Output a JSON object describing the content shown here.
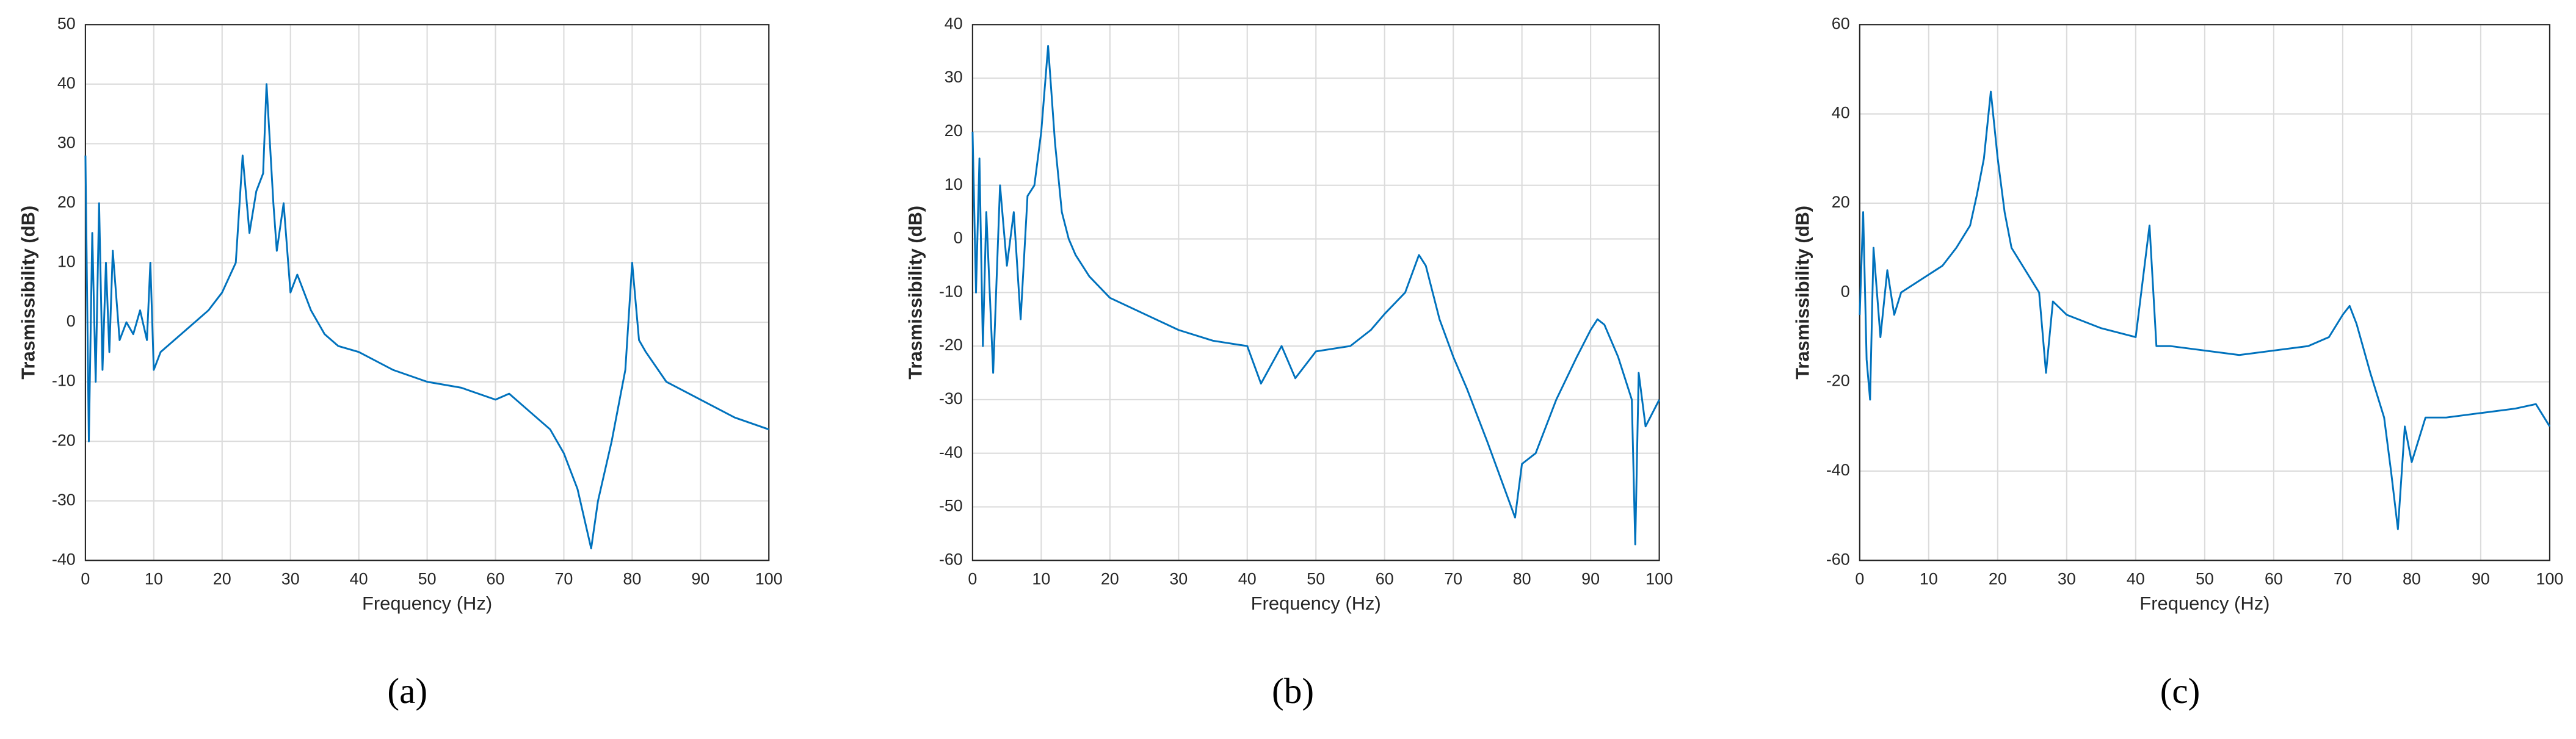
{
  "chart_data": [
    {
      "type": "line",
      "caption": "(a)",
      "xlabel": "Frequency (Hz)",
      "ylabel": "Trasmissibility (dB)",
      "xlim": [
        0,
        100
      ],
      "xticks": [
        0,
        10,
        20,
        30,
        40,
        50,
        60,
        70,
        80,
        90,
        100
      ],
      "ylim": [
        -40,
        50
      ],
      "yticks": [
        -40,
        -30,
        -20,
        -10,
        0,
        10,
        20,
        30,
        40,
        50
      ],
      "grid": true,
      "color": "#0072bd",
      "x": [
        0,
        0.5,
        1,
        1.5,
        2,
        2.5,
        3,
        3.5,
        4,
        5,
        6,
        7,
        8,
        9,
        9.5,
        10,
        11,
        13,
        15,
        18,
        20,
        22,
        23,
        24,
        25,
        26,
        26.5,
        27,
        27.5,
        28,
        29,
        30,
        31,
        33,
        35,
        37,
        40,
        45,
        50,
        55,
        60,
        62,
        65,
        68,
        70,
        72,
        74,
        75,
        77,
        79,
        80,
        81,
        82,
        85,
        90,
        95,
        100
      ],
      "values": [
        28,
        -20,
        15,
        -10,
        20,
        -8,
        10,
        -5,
        12,
        -3,
        0,
        -2,
        2,
        -3,
        10,
        -8,
        -5,
        -3,
        -1,
        2,
        5,
        10,
        28,
        15,
        22,
        25,
        40,
        30,
        20,
        12,
        20,
        5,
        8,
        2,
        -2,
        -4,
        -5,
        -8,
        -10,
        -11,
        -13,
        -12,
        -15,
        -18,
        -22,
        -28,
        -38,
        -30,
        -20,
        -8,
        10,
        -3,
        -5,
        -10,
        -13,
        -16,
        -18
      ]
    },
    {
      "type": "line",
      "caption": "(b)",
      "xlabel": "Frequency (Hz)",
      "ylabel": "Trasmissibility (dB)",
      "xlim": [
        0,
        100
      ],
      "xticks": [
        0,
        10,
        20,
        30,
        40,
        50,
        60,
        70,
        80,
        90,
        100
      ],
      "ylim": [
        -60,
        40
      ],
      "yticks": [
        -60,
        -50,
        -40,
        -30,
        -20,
        -10,
        0,
        10,
        20,
        30,
        40
      ],
      "grid": true,
      "color": "#0072bd",
      "x": [
        0,
        0.5,
        1,
        1.5,
        2,
        3,
        4,
        5,
        6,
        7,
        8,
        9,
        10,
        11,
        12,
        13,
        14,
        15,
        17,
        20,
        25,
        30,
        35,
        40,
        42,
        45,
        47,
        50,
        55,
        58,
        60,
        63,
        65,
        66,
        68,
        70,
        72,
        75,
        77,
        79,
        80,
        82,
        85,
        88,
        90,
        91,
        92,
        94,
        96,
        96.5,
        97,
        98,
        100
      ],
      "values": [
        20,
        -10,
        15,
        -20,
        5,
        -25,
        10,
        -5,
        5,
        -15,
        8,
        10,
        20,
        36,
        18,
        5,
        0,
        -3,
        -7,
        -11,
        -14,
        -17,
        -19,
        -20,
        -27,
        -20,
        -26,
        -21,
        -20,
        -17,
        -14,
        -10,
        -3,
        -5,
        -15,
        -22,
        -28,
        -38,
        -45,
        -52,
        -42,
        -40,
        -30,
        -22,
        -17,
        -15,
        -16,
        -22,
        -30,
        -57,
        -25,
        -35,
        -30
      ]
    },
    {
      "type": "line",
      "caption": "(c)",
      "xlabel": "Frequency (Hz)",
      "ylabel": "Trasmissibility (dB)",
      "xlim": [
        0,
        100
      ],
      "xticks": [
        0,
        10,
        20,
        30,
        40,
        50,
        60,
        70,
        80,
        90,
        100
      ],
      "ylim": [
        -60,
        60
      ],
      "yticks": [
        -60,
        -40,
        -20,
        0,
        20,
        40,
        60
      ],
      "grid": true,
      "color": "#0072bd",
      "x": [
        0,
        0.5,
        1,
        1.5,
        2,
        3,
        4,
        5,
        6,
        8,
        10,
        12,
        14,
        16,
        17,
        18,
        19,
        20,
        21,
        22,
        24,
        26,
        27,
        28,
        30,
        35,
        40,
        42,
        43,
        45,
        50,
        55,
        60,
        65,
        68,
        70,
        71,
        72,
        74,
        76,
        77,
        78,
        79,
        80,
        82,
        85,
        90,
        95,
        98,
        100
      ],
      "values": [
        -5,
        18,
        -15,
        -24,
        10,
        -10,
        5,
        -5,
        0,
        2,
        4,
        6,
        10,
        15,
        22,
        30,
        45,
        30,
        18,
        10,
        5,
        0,
        -18,
        -2,
        -5,
        -8,
        -10,
        15,
        -12,
        -12,
        -13,
        -14,
        -13,
        -12,
        -10,
        -5,
        -3,
        -7,
        -18,
        -28,
        -40,
        -53,
        -30,
        -38,
        -28,
        -28,
        -27,
        -26,
        -25,
        -30
      ]
    }
  ]
}
